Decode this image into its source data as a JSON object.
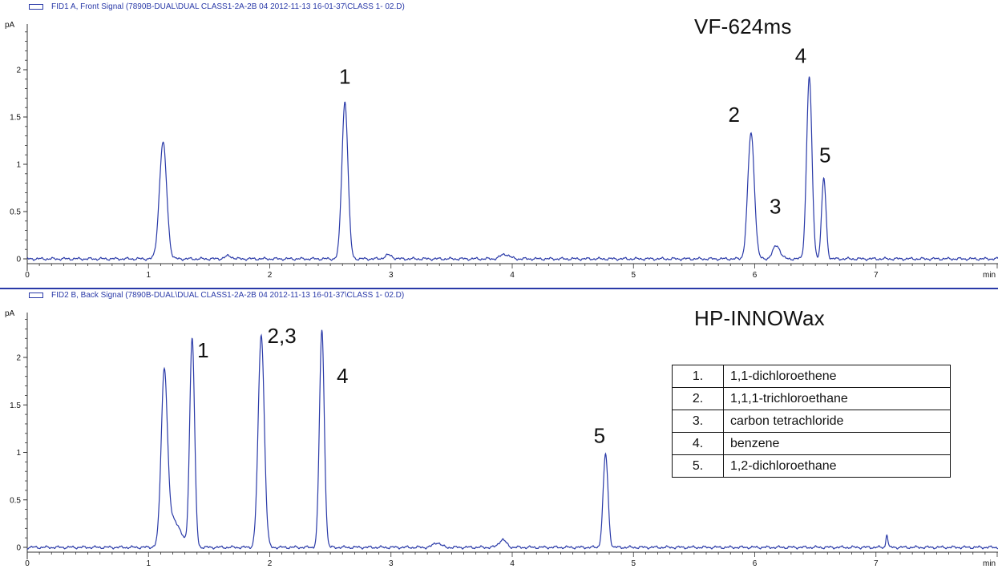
{
  "chart_data": [
    {
      "type": "line",
      "signal_title": "FID1 A, Front Signal (7890B-DUAL\\DUAL CLASS1-2A-2B 04 2012-11-13 16-01-37\\CLASS 1- 02.D)",
      "column": "VF-624ms",
      "ylabel": "pA",
      "xunit": "min",
      "xlim": [
        0,
        8
      ],
      "ylim": [
        -0.05,
        2.4
      ],
      "xticks": [
        "0",
        "1",
        "2",
        "3",
        "4",
        "5",
        "6",
        "7"
      ],
      "yticks": [
        "0",
        "0.5",
        "1",
        "1.5",
        "2"
      ],
      "ytick_values": [
        0,
        0.5,
        1,
        1.5,
        2
      ],
      "baseline": 0,
      "peaks": [
        {
          "rt": 1.12,
          "height": 1.23,
          "width": 0.03
        },
        {
          "rt": 1.66,
          "height": 0.03,
          "width": 0.03
        },
        {
          "rt": 2.62,
          "height": 1.66,
          "width": 0.025
        },
        {
          "rt": 2.98,
          "height": 0.04,
          "width": 0.03
        },
        {
          "rt": 3.94,
          "height": 0.05,
          "width": 0.035
        },
        {
          "rt": 5.97,
          "height": 1.33,
          "width": 0.027
        },
        {
          "rt": 6.18,
          "height": 0.14,
          "width": 0.03
        },
        {
          "rt": 6.45,
          "height": 1.92,
          "width": 0.022
        },
        {
          "rt": 6.57,
          "height": 0.85,
          "width": 0.018
        }
      ],
      "peak_labels": [
        {
          "text": "1",
          "x": 2.62,
          "y": 1.85
        },
        {
          "text": "2",
          "x": 5.83,
          "y": 1.45
        },
        {
          "text": "3",
          "x": 6.17,
          "y": 0.48
        },
        {
          "text": "4",
          "x": 6.38,
          "y": 2.07
        },
        {
          "text": "5",
          "x": 6.58,
          "y": 1.02
        }
      ]
    },
    {
      "type": "line",
      "signal_title": "FID2 B, Back Signal (7890B-DUAL\\DUAL CLASS1-2A-2B 04 2012-11-13 16-01-37\\CLASS 1- 02.D)",
      "column": "HP-INNOWax",
      "ylabel": "pA",
      "xunit": "min",
      "xlim": [
        0,
        8
      ],
      "ylim": [
        -0.05,
        2.4
      ],
      "xticks": [
        "0",
        "1",
        "2",
        "3",
        "4",
        "5",
        "6",
        "7"
      ],
      "yticks": [
        "0",
        "0.5",
        "1",
        "1.5",
        "2"
      ],
      "ytick_values": [
        0,
        0.5,
        1,
        1.5,
        2
      ],
      "baseline": 0,
      "peaks": [
        {
          "rt": 1.13,
          "height": 1.74,
          "width": 0.025
        },
        {
          "rt": 1.2,
          "height": 0.3,
          "width": 0.06
        },
        {
          "rt": 1.36,
          "height": 2.2,
          "width": 0.02
        },
        {
          "rt": 1.93,
          "height": 2.24,
          "width": 0.025
        },
        {
          "rt": 2.43,
          "height": 2.28,
          "width": 0.02
        },
        {
          "rt": 3.38,
          "height": 0.05,
          "width": 0.03
        },
        {
          "rt": 3.92,
          "height": 0.08,
          "width": 0.03
        },
        {
          "rt": 4.77,
          "height": 0.98,
          "width": 0.02
        },
        {
          "rt": 7.09,
          "height": 0.14,
          "width": 0.008
        }
      ],
      "peak_labels": [
        {
          "text": "1",
          "x": 1.45,
          "y": 2.0
        },
        {
          "text": "2,3",
          "x": 2.1,
          "y": 2.15
        },
        {
          "text": "4",
          "x": 2.6,
          "y": 1.73
        },
        {
          "text": "5",
          "x": 4.72,
          "y": 1.1
        }
      ]
    }
  ],
  "compounds": [
    {
      "number": "1.",
      "name": "1,1-dichloroethene"
    },
    {
      "number": "2.",
      "name": "1,1,1-trichloroethane"
    },
    {
      "number": "3.",
      "name": "carbon tetrachloride"
    },
    {
      "number": "4.",
      "name": "benzene"
    },
    {
      "number": "5.",
      "name": "1,2-dichloroethane"
    }
  ],
  "colors": {
    "trace": "#2a3aa8",
    "axis": "#333333",
    "text": "#111111"
  }
}
